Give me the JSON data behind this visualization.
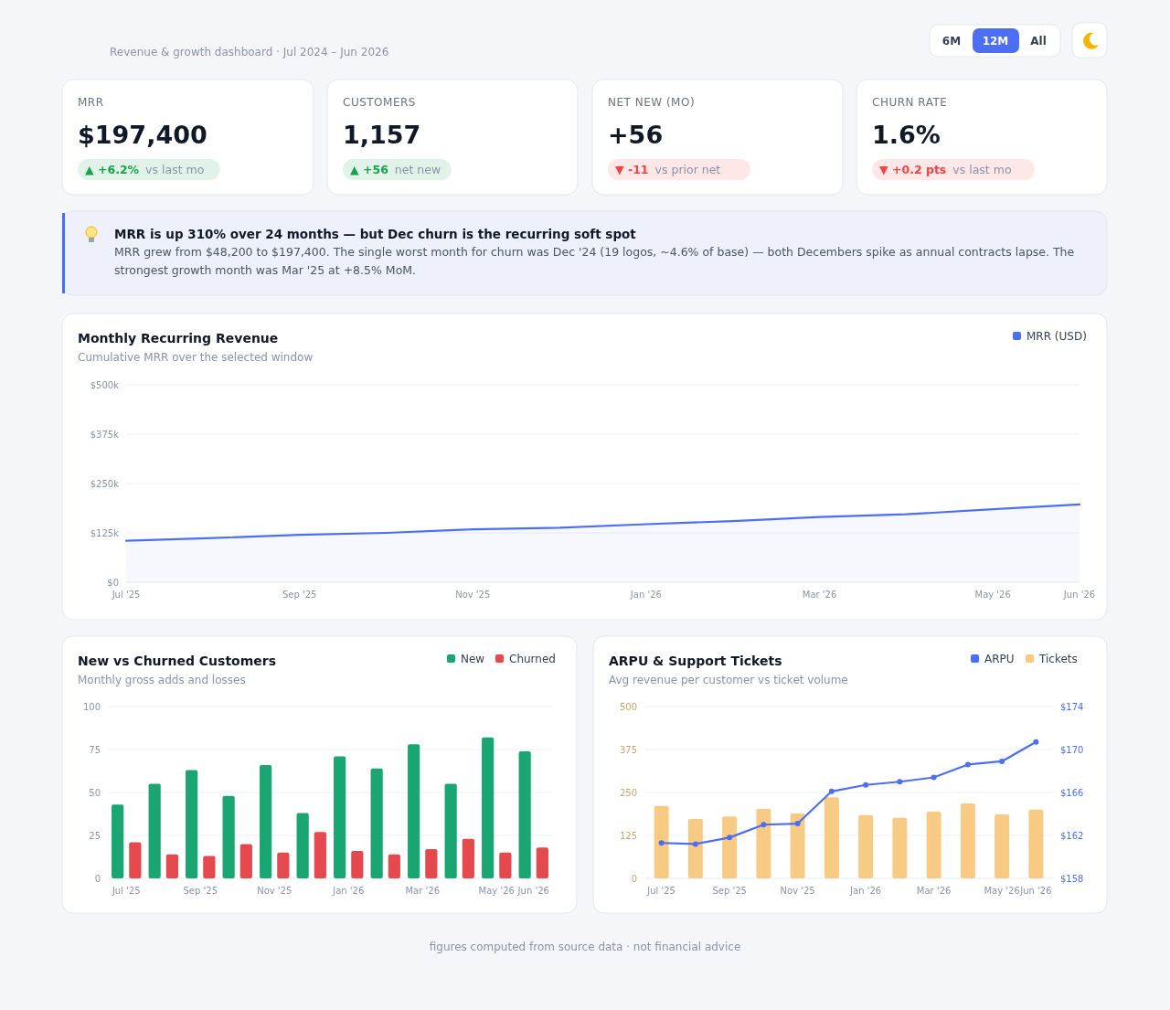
{
  "chart_data": [
    {
      "type": "other",
      "subtitle": "Revenue & growth dashboard · Jul 2024 – Jun 2026",
      "annotations": [
        "6M",
        "12M",
        "All",
        "figures computed from source data · not financial advice"
      ]
    },
    {
      "type": "other",
      "title": "MRR",
      "color": "#16a34a",
      "annotations": [
        "$197,400",
        "▲ +6.2%",
        "vs last mo"
      ]
    },
    {
      "type": "other",
      "title": "CUSTOMERS",
      "color": "#16a34a",
      "annotations": [
        "1,157",
        "▲ +56",
        "net new"
      ]
    },
    {
      "type": "other",
      "title": "NET NEW (MO)",
      "color": "#ef4444",
      "annotations": [
        "+56",
        "▼ -11",
        "vs prior net"
      ]
    },
    {
      "type": "other",
      "title": "CHURN RATE",
      "color": "#ef4444",
      "annotations": [
        "1.6%",
        "▼ +0.2 pts",
        "vs last mo"
      ]
    },
    {
      "type": "other",
      "title": "MRR is up 310% over 24 months — but Dec churn is the recurring soft spot",
      "annotations": [
        "MRR grew from $48,200 to $197,400. The single worst month for churn was Dec '24 (19 logos, ~4.6% of base) — both Decembers spike as annual contracts lapse. The strongest growth month was Mar '25 at +8.5% MoM."
      ]
    },
    {
      "type": "area",
      "title": "Monthly Recurring Revenue",
      "subtitle": "Cumulative MRR over the selected window",
      "categories": [
        "Jul '25",
        null,
        "Sep '25",
        null,
        "Nov '25",
        null,
        "Jan '26",
        null,
        "Mar '26",
        null,
        "May '26",
        "Jun '26"
      ],
      "series": [
        {
          "name": "MRR (USD)",
          "color": "#4c6ef5",
          "values": [
            105,
            112,
            120,
            125,
            134,
            138,
            147,
            155,
            165,
            172,
            185,
            197
          ]
        }
      ],
      "ylim": [
        0,
        500
      ],
      "yticks": [
        {
          "value": 0,
          "label": "$0"
        },
        {
          "value": 125,
          "label": "$125k"
        },
        {
          "value": 250,
          "label": "$250k"
        },
        {
          "value": 375,
          "label": "$375k"
        },
        {
          "value": 500,
          "label": "$500k"
        }
      ],
      "grid": "y",
      "legend": "top right"
    },
    {
      "type": "bar",
      "title": "New vs Churned Customers",
      "subtitle": "Monthly gross adds and losses",
      "categories": [
        "Jul '25",
        null,
        "Sep '25",
        null,
        "Nov '25",
        null,
        "Jan '26",
        null,
        "Mar '26",
        null,
        "May '26",
        "Jun '26"
      ],
      "series": [
        {
          "name": "New",
          "color": "#1aa672",
          "values": [
            43,
            55,
            63,
            48,
            66,
            38,
            71,
            64,
            78,
            55,
            82,
            74
          ]
        },
        {
          "name": "Churned",
          "color": "#e5484d",
          "values": [
            21,
            14,
            13,
            20,
            15,
            27,
            16,
            14,
            17,
            23,
            15,
            18
          ]
        }
      ],
      "ylim": [
        0,
        100
      ],
      "yticks": [
        0,
        25,
        50,
        75,
        100
      ],
      "grid": "y",
      "legend": "top right"
    },
    {
      "type": "bar",
      "title": "ARPU & Support Tickets",
      "subtitle": "Avg revenue per customer vs ticket volume",
      "categories": [
        "Jul '25",
        null,
        "Sep '25",
        null,
        "Nov '25",
        null,
        "Jan '26",
        null,
        "Mar '26",
        null,
        "May '26",
        "Jun '26"
      ],
      "series": [
        {
          "name": "ARPU",
          "type": "line",
          "axis": "y2",
          "color": "#4c6ef5",
          "values": [
            161.3,
            161.2,
            161.8,
            163,
            163.1,
            166.1,
            166.7,
            167,
            167.4,
            168.6,
            168.9,
            170.7
          ]
        },
        {
          "name": "Tickets",
          "type": "bar",
          "color": "#f8cb85",
          "values": [
            211,
            173,
            180,
            202,
            189,
            236,
            184,
            176,
            194,
            218,
            186,
            200
          ]
        }
      ],
      "ylim": [
        0,
        500
      ],
      "yticks": [
        0,
        125,
        250,
        375,
        500
      ],
      "y2lim": [
        158,
        174
      ],
      "y2ticks": [
        {
          "value": 158,
          "label": "$158"
        },
        {
          "value": 162,
          "label": "$162"
        },
        {
          "value": 166,
          "label": "$166"
        },
        {
          "value": 170,
          "label": "$170"
        },
        {
          "value": 174,
          "label": "$174"
        }
      ],
      "grid": "y",
      "legend": "top right",
      "marker": "circle"
    }
  ]
}
